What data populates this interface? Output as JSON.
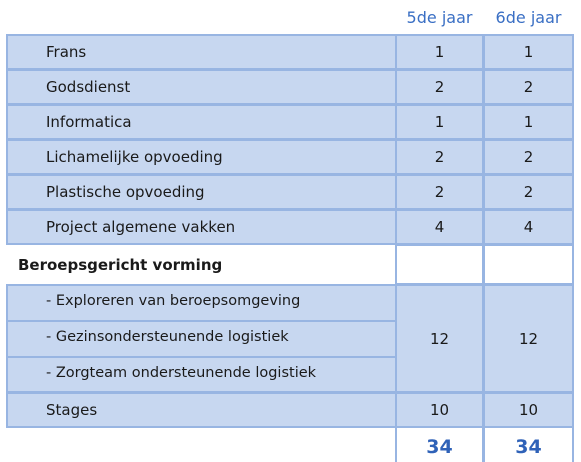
{
  "columns": [
    "5de jaar",
    "6de jaar"
  ],
  "rows": [
    {
      "label": "Frans",
      "values": [
        1,
        1
      ]
    },
    {
      "label": "Godsdienst",
      "values": [
        2,
        2
      ]
    },
    {
      "label": "Informatica",
      "values": [
        1,
        1
      ]
    },
    {
      "label": "Lichamelijke opvoeding",
      "values": [
        2,
        2
      ]
    },
    {
      "label": "Plastische  opvoeding",
      "values": [
        2,
        2
      ]
    },
    {
      "label": "Project algemene vakken",
      "values": [
        4,
        4
      ]
    }
  ],
  "section": {
    "title": "Beroepsgericht vorming",
    "items": [
      "- Exploreren van beroepsomgeving",
      "- Gezinsondersteunende logistiek",
      "- Zorgteam ondersteunende logistiek"
    ],
    "values": [
      12,
      12
    ]
  },
  "stages": {
    "label": "Stages",
    "values": [
      10,
      10
    ]
  },
  "total": [
    34,
    34
  ]
}
